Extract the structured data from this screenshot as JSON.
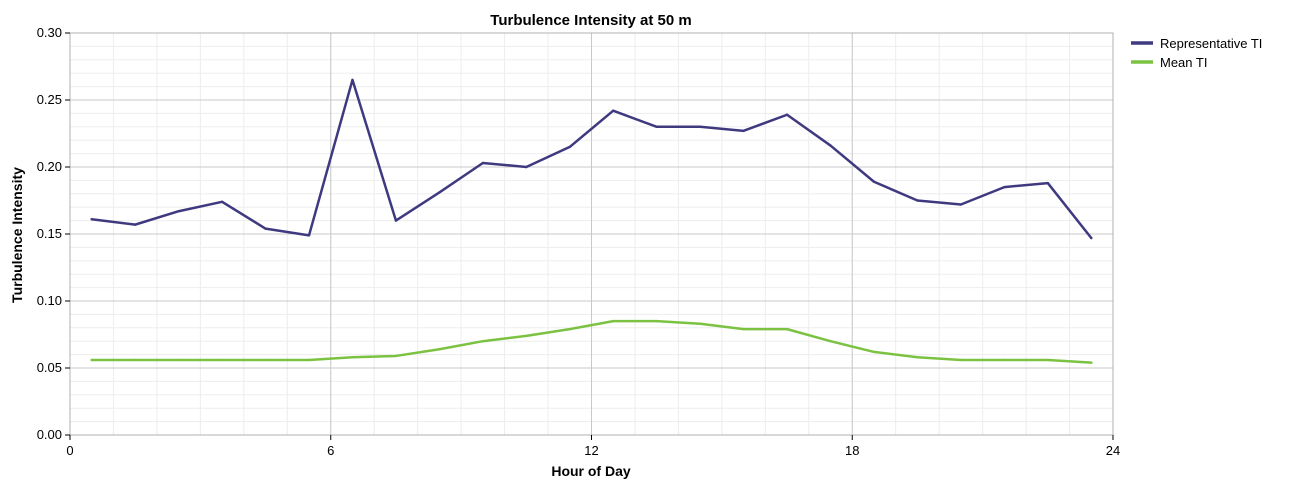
{
  "chart_data": {
    "type": "line",
    "title": "Turbulence Intensity at 50 m",
    "xlabel": "Hour of Day",
    "ylabel": "Turbulence Intensity",
    "xlim": [
      0,
      24
    ],
    "ylim": [
      0,
      0.3
    ],
    "x_ticks": [
      0,
      6,
      12,
      18,
      24
    ],
    "x_tick_labels": [
      "0",
      "6",
      "12",
      "18",
      "24"
    ],
    "y_ticks": [
      0,
      0.05,
      0.1,
      0.15,
      0.2,
      0.25,
      0.3
    ],
    "y_tick_labels": [
      "0.00",
      "0.05",
      "0.10",
      "0.15",
      "0.20",
      "0.25",
      "0.30"
    ],
    "grid": true,
    "legend_position": "top-right",
    "x": [
      0.5,
      1.5,
      2.5,
      3.5,
      4.5,
      5.5,
      6.5,
      7.5,
      8.5,
      9.5,
      10.5,
      11.5,
      12.5,
      13.5,
      14.5,
      15.5,
      16.5,
      17.5,
      18.5,
      19.5,
      20.5,
      21.5,
      22.5,
      23.5
    ],
    "series": [
      {
        "name": "Representative TI",
        "color": "#3f3a80",
        "values": [
          0.161,
          0.157,
          0.167,
          0.174,
          0.154,
          0.149,
          0.265,
          0.16,
          0.181,
          0.203,
          0.2,
          0.215,
          0.242,
          0.23,
          0.23,
          0.227,
          0.239,
          0.216,
          0.189,
          0.175,
          0.172,
          0.185,
          0.188,
          0.147
        ]
      },
      {
        "name": "Mean TI",
        "color": "#7cc242",
        "values": [
          0.056,
          0.056,
          0.056,
          0.056,
          0.056,
          0.056,
          0.058,
          0.059,
          0.064,
          0.07,
          0.074,
          0.079,
          0.085,
          0.085,
          0.083,
          0.079,
          0.079,
          0.07,
          0.062,
          0.058,
          0.056,
          0.056,
          0.056,
          0.054
        ]
      }
    ]
  }
}
